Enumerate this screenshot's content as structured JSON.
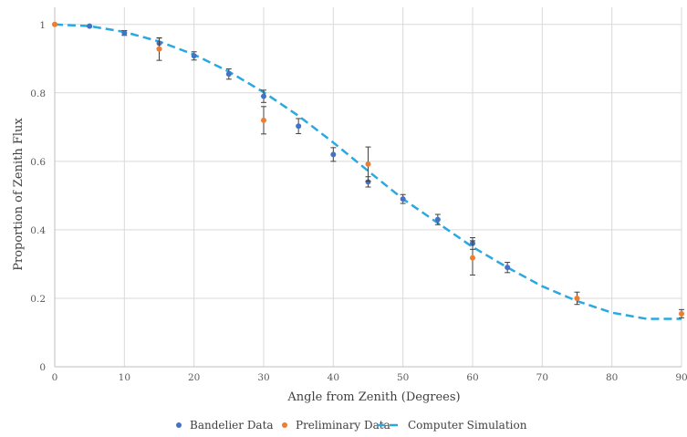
{
  "chart_data": {
    "type": "scatter",
    "title": "",
    "xlabel": "Angle from Zenith (Degrees)",
    "ylabel": "Proportion of Zenith Flux",
    "xlim": [
      0,
      90
    ],
    "ylim": [
      0,
      1.05
    ],
    "x_ticks": [
      "0",
      "10",
      "20",
      "30",
      "40",
      "50",
      "60",
      "70",
      "80",
      "90"
    ],
    "y_ticks": [
      "0",
      "0.2",
      "0.4",
      "0.6",
      "0.8",
      "1"
    ],
    "grid": true,
    "legend_position": "bottom",
    "series": [
      {
        "name": "Bandelier Data",
        "kind": "points",
        "color": "#4472C4",
        "points": [
          {
            "x": 5,
            "y": 0.995,
            "err": 0.0
          },
          {
            "x": 10,
            "y": 0.975,
            "err": 0.007
          },
          {
            "x": 15,
            "y": 0.945,
            "err": 0.015
          },
          {
            "x": 20,
            "y": 0.908,
            "err": 0.012
          },
          {
            "x": 25,
            "y": 0.855,
            "err": 0.015
          },
          {
            "x": 30,
            "y": 0.79,
            "err": 0.018
          },
          {
            "x": 35,
            "y": 0.703,
            "err": 0.022
          },
          {
            "x": 40,
            "y": 0.62,
            "err": 0.02
          },
          {
            "x": 45,
            "y": 0.54,
            "err": 0.015
          },
          {
            "x": 50,
            "y": 0.49,
            "err": 0.013
          },
          {
            "x": 55,
            "y": 0.43,
            "err": 0.015
          },
          {
            "x": 60,
            "y": 0.36,
            "err": 0.017
          },
          {
            "x": 65,
            "y": 0.29,
            "err": 0.015
          }
        ]
      },
      {
        "name": "Preliminary Data",
        "kind": "points",
        "color": "#ED7D31",
        "points": [
          {
            "x": 0,
            "y": 1.0,
            "err": 0.0
          },
          {
            "x": 15,
            "y": 0.928,
            "err": 0.033
          },
          {
            "x": 30,
            "y": 0.72,
            "err": 0.04
          },
          {
            "x": 45,
            "y": 0.592,
            "err": 0.05
          },
          {
            "x": 60,
            "y": 0.318,
            "err": 0.05
          },
          {
            "x": 75,
            "y": 0.2,
            "err": 0.018
          },
          {
            "x": 90,
            "y": 0.155,
            "err": 0.012
          }
        ]
      },
      {
        "name": "Computer Simulation",
        "kind": "dashed-line",
        "color": "#2AA8E0",
        "points": [
          {
            "x": 0,
            "y": 1.0
          },
          {
            "x": 5,
            "y": 0.995
          },
          {
            "x": 10,
            "y": 0.978
          },
          {
            "x": 15,
            "y": 0.95
          },
          {
            "x": 20,
            "y": 0.912
          },
          {
            "x": 25,
            "y": 0.862
          },
          {
            "x": 30,
            "y": 0.802
          },
          {
            "x": 35,
            "y": 0.733
          },
          {
            "x": 40,
            "y": 0.655
          },
          {
            "x": 45,
            "y": 0.572
          },
          {
            "x": 50,
            "y": 0.49
          },
          {
            "x": 55,
            "y": 0.42
          },
          {
            "x": 60,
            "y": 0.35
          },
          {
            "x": 65,
            "y": 0.29
          },
          {
            "x": 70,
            "y": 0.235
          },
          {
            "x": 75,
            "y": 0.192
          },
          {
            "x": 80,
            "y": 0.158
          },
          {
            "x": 85,
            "y": 0.14
          },
          {
            "x": 90,
            "y": 0.14
          }
        ]
      }
    ]
  }
}
